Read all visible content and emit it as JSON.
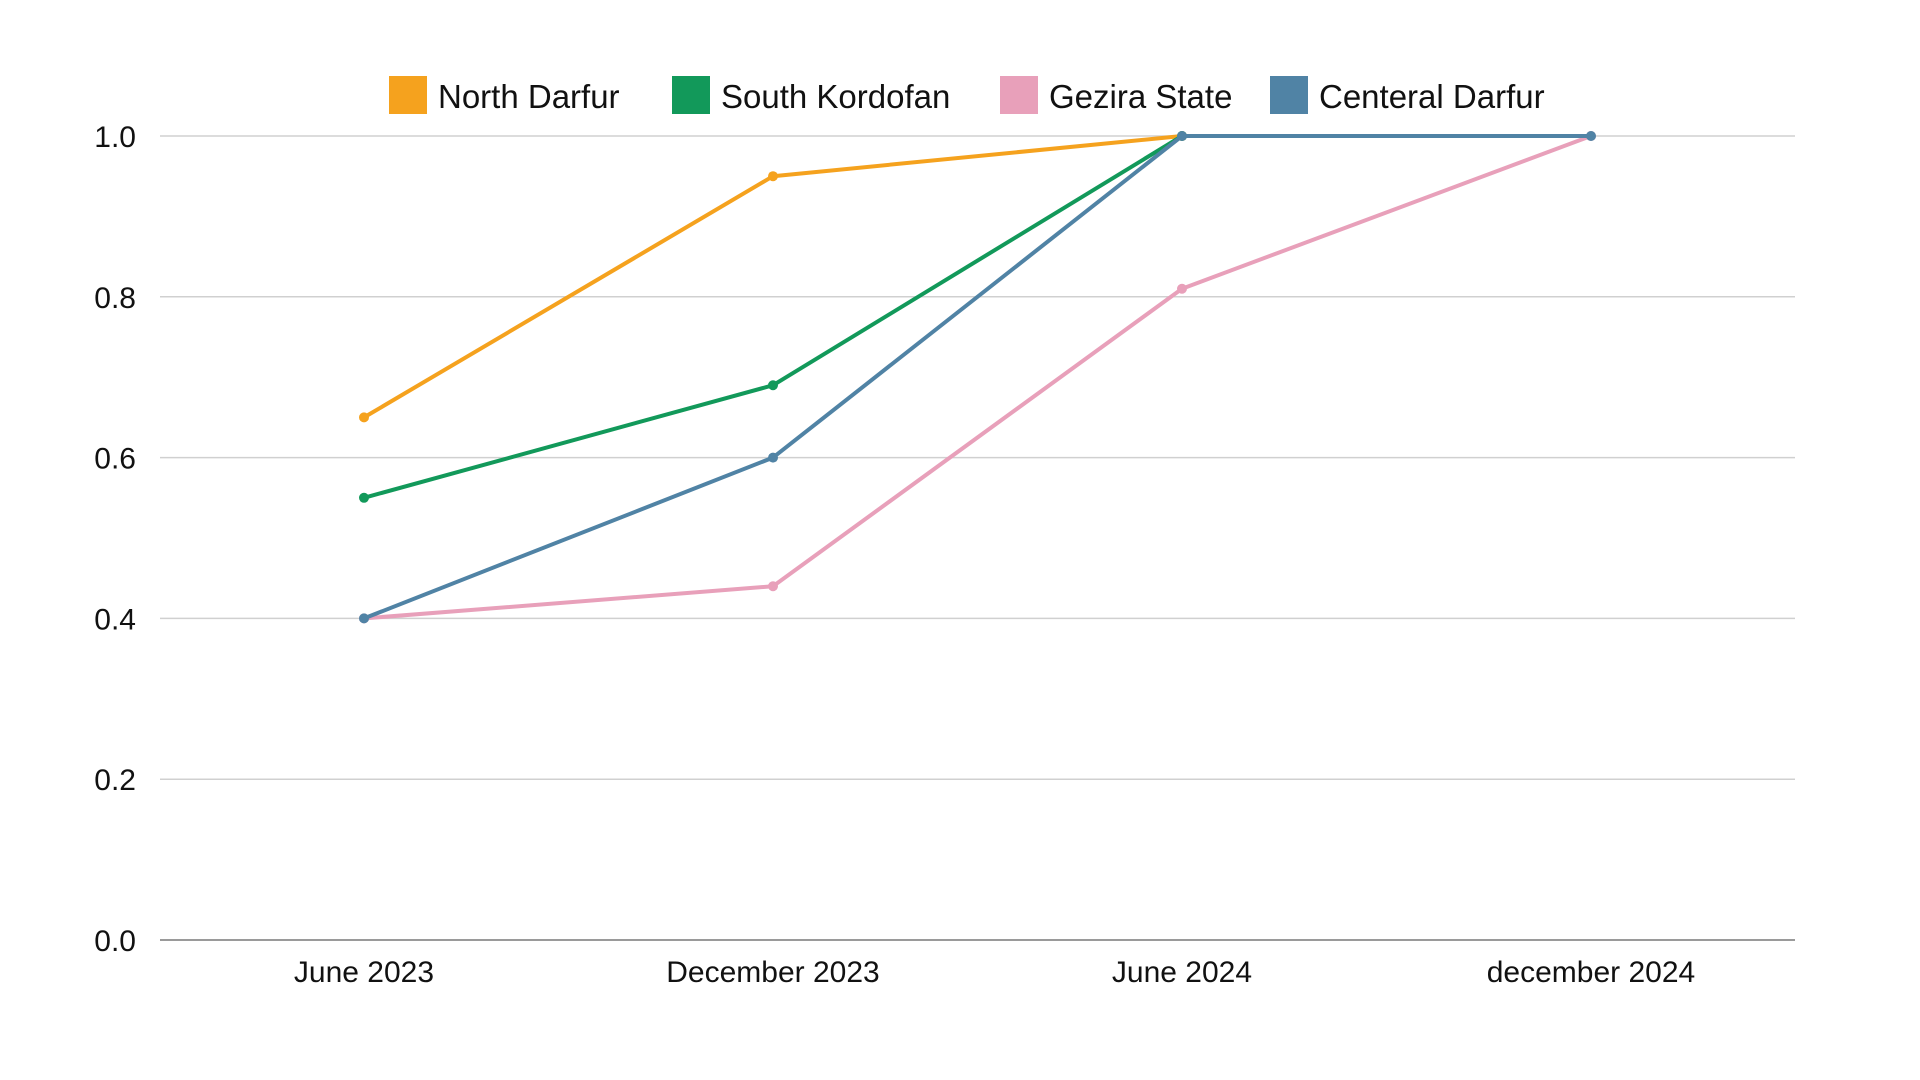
{
  "chart_data": {
    "type": "line",
    "title": "",
    "xlabel": "",
    "ylabel": "",
    "categories": [
      "June 2023",
      "December 2023",
      "June 2024",
      "december 2024"
    ],
    "ylim": [
      0,
      1.0
    ],
    "yticks": [
      "0.0",
      "0.2",
      "0.4",
      "0.6",
      "0.8",
      "1.0"
    ],
    "grid": true,
    "legend_position": "top",
    "series": [
      {
        "name": "North Darfur",
        "color": "#F5A21E",
        "values": [
          0.65,
          0.95,
          1.0,
          null
        ]
      },
      {
        "name": "South Kordofan",
        "color": "#12995A",
        "values": [
          0.55,
          0.69,
          1.0,
          null
        ]
      },
      {
        "name": "Gezira State",
        "color": "#E8A0BA",
        "values": [
          0.4,
          0.44,
          0.81,
          1.0
        ]
      },
      {
        "name": "Centeral Darfur",
        "color": "#5083A5",
        "values": [
          0.4,
          0.6,
          1.0,
          1.0
        ]
      }
    ]
  }
}
